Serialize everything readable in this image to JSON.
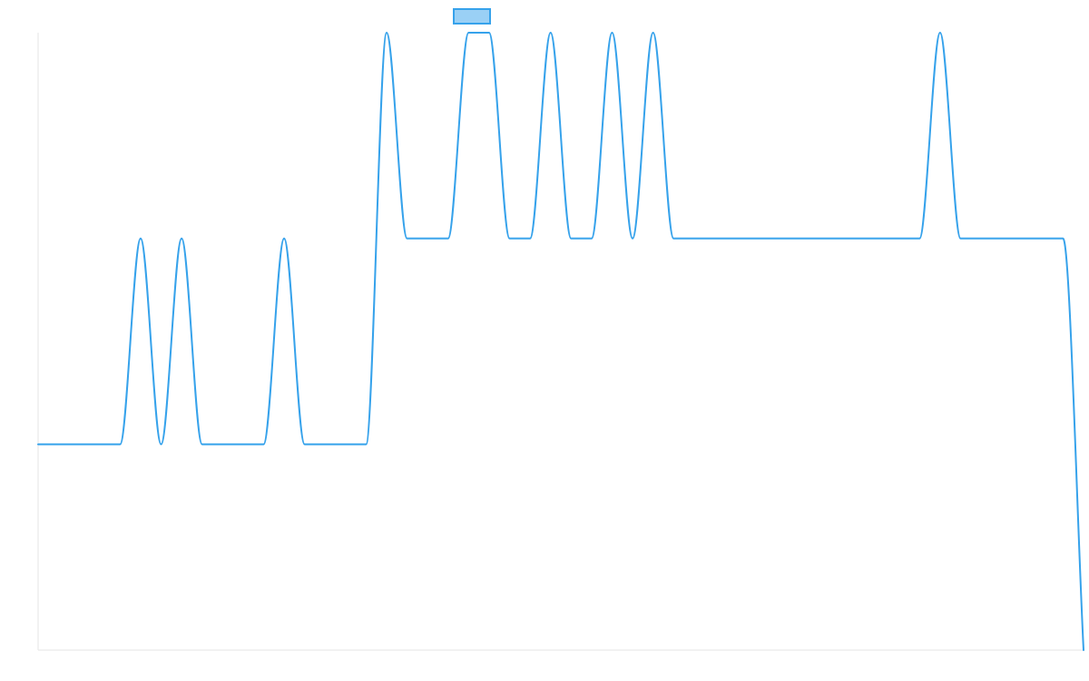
{
  "colors": {
    "series": "#36a2eb",
    "legend_fill": "#9ad0f5"
  },
  "chart_data": {
    "type": "line",
    "title": "",
    "xlabel": "",
    "ylabel": "",
    "grid": false,
    "legend": {
      "placement": "top-center",
      "entries": [
        ""
      ]
    },
    "x": [
      0,
      1,
      2,
      3,
      4,
      5,
      6,
      7,
      8,
      9,
      10,
      11,
      12,
      13,
      14,
      15,
      16,
      17,
      18,
      19,
      20,
      21,
      22,
      23,
      24,
      25,
      26,
      27,
      28,
      29,
      30,
      31,
      32,
      33,
      34,
      35,
      36,
      37,
      38,
      39,
      40,
      41,
      42,
      43,
      44,
      45,
      46,
      47,
      48,
      49,
      50,
      51
    ],
    "ylim": [
      0,
      3
    ],
    "series": [
      {
        "name": "",
        "values": [
          1,
          1,
          1,
          1,
          1,
          2,
          1,
          2,
          1,
          1,
          1,
          1,
          2,
          1,
          1,
          1,
          1,
          3,
          2,
          2,
          2,
          3,
          3,
          2,
          2,
          3,
          2,
          2,
          3,
          2,
          3,
          2,
          2,
          2,
          2,
          2,
          2,
          2,
          2,
          2,
          2,
          2,
          2,
          2,
          3,
          2,
          2,
          2,
          2,
          2,
          2,
          0
        ]
      }
    ]
  }
}
